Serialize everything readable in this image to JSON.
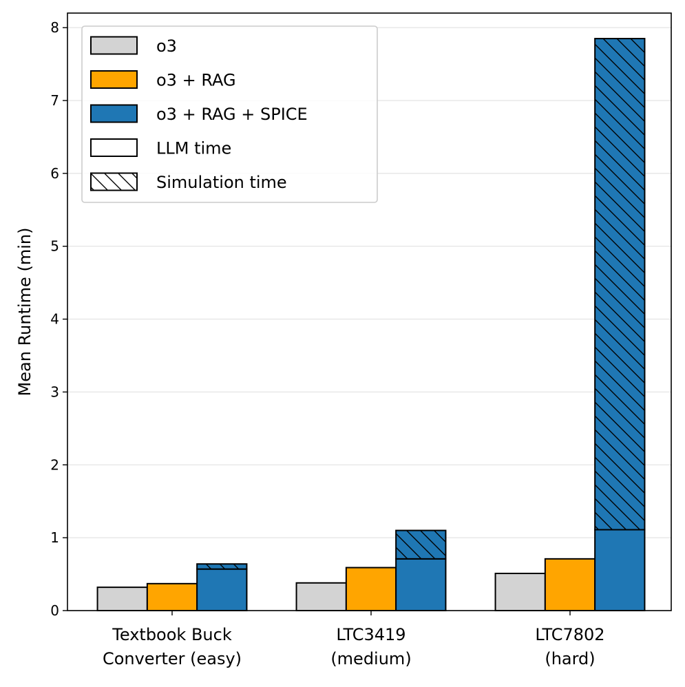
{
  "chart_data": {
    "type": "bar",
    "ylabel": "Mean Runtime (min)",
    "ylim": [
      0,
      8.2
    ],
    "yticks": [
      0,
      1,
      2,
      3,
      4,
      5,
      6,
      7,
      8
    ],
    "grid": "horizontal",
    "legend_placement": "top-left",
    "categories": [
      [
        "Textbook Buck",
        "Converter (easy)"
      ],
      [
        "LTC3419",
        "(medium)"
      ],
      [
        "LTC7802",
        "(hard)"
      ]
    ],
    "series": [
      {
        "name": "o3",
        "color": "#d3d3d3",
        "llm_time": [
          0.32,
          0.38,
          0.51
        ],
        "simulation_time": [
          0,
          0,
          0
        ]
      },
      {
        "name": "o3 + RAG",
        "color": "#ffa500",
        "llm_time": [
          0.37,
          0.59,
          0.71
        ],
        "simulation_time": [
          0,
          0,
          0
        ]
      },
      {
        "name": "o3 + RAG + SPICE",
        "color": "#1f77b4",
        "llm_time": [
          0.57,
          0.71,
          1.11
        ],
        "simulation_time": [
          0.07,
          0.39,
          6.74
        ]
      }
    ],
    "legend": [
      {
        "label": "o3",
        "swatch": "o3"
      },
      {
        "label": "o3 + RAG",
        "swatch": "o3-rag"
      },
      {
        "label": "o3 + RAG + SPICE",
        "swatch": "spice"
      },
      {
        "label": "LLM time",
        "swatch": "llm"
      },
      {
        "label": "Simulation time",
        "swatch": "sim"
      }
    ]
  }
}
